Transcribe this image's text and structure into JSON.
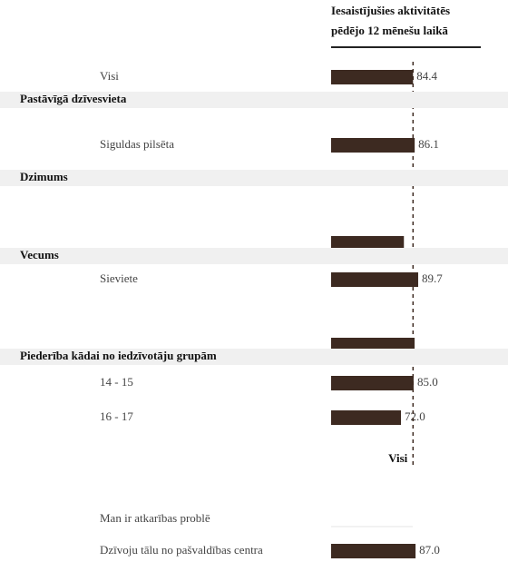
{
  "chart_data": {
    "type": "bar",
    "title": [
      "Iesaistījušies aktivitātēs",
      "pēdējo 12 mēnešu laikā"
    ],
    "categories": [
      "Visi",
      "Siguldas pilsēta",
      null,
      "Sieviete",
      null,
      "14 - 15",
      "16 - 17",
      "Man ir atkarības problē",
      "Dzīvoju tālu no pašvaldības centra"
    ],
    "values": [
      84.4,
      86.1,
      75,
      89.7,
      86,
      85.0,
      72.0,
      null,
      87.0
    ],
    "value_labels": [
      "84.4",
      "86.1",
      null,
      "89.7",
      null,
      "85.0",
      "72.0",
      null,
      "87.0"
    ],
    "groups": [
      "Pastāvīgā dzīvesvieta",
      "Dzimums",
      "Vecums",
      "Piederība kādai no iedzīvotāju grupām"
    ],
    "reference": {
      "label": "Visi",
      "value": 84.4
    },
    "color": "#3d2a21",
    "xlim": [
      0,
      100
    ]
  }
}
